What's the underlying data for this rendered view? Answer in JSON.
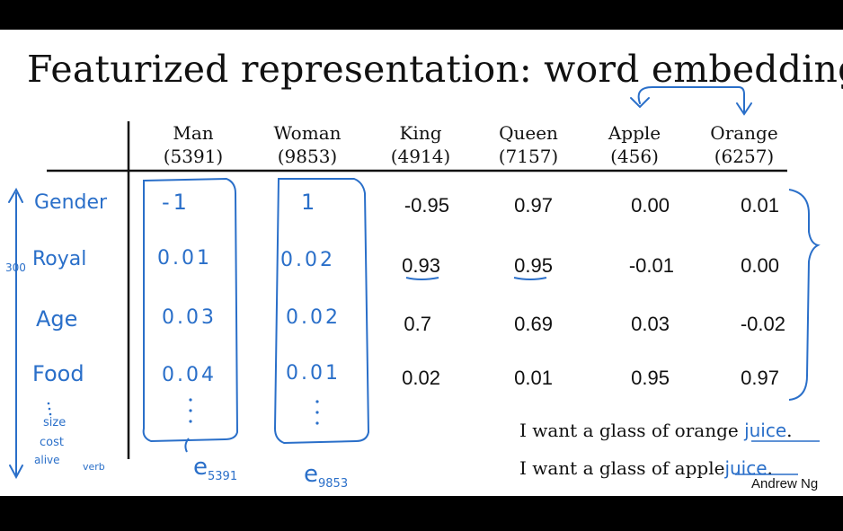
{
  "title": "Featurized representation: word embedding",
  "columns": [
    {
      "word": "Man",
      "index": "(5391)"
    },
    {
      "word": "Woman",
      "index": "(9853)"
    },
    {
      "word": "King",
      "index": "(4914)"
    },
    {
      "word": "Queen",
      "index": "(7157)"
    },
    {
      "word": "Apple",
      "index": "(456)"
    },
    {
      "word": "Orange",
      "index": "(6257)"
    }
  ],
  "features": [
    "Gender",
    "Royal",
    "Age",
    "Food"
  ],
  "extra_features": [
    "size",
    "cost",
    "alive",
    "verb"
  ],
  "dimension_note": "300",
  "handwritten_values": {
    "man": [
      "-1",
      "0.01",
      "0.03",
      "0.04"
    ],
    "woman": [
      "1",
      "0.02",
      "0.02",
      "0.01"
    ]
  },
  "typed_values": {
    "king": [
      "-0.95",
      "0.93",
      "0.7",
      "0.02"
    ],
    "queen": [
      "0.97",
      "0.95",
      "0.69",
      "0.01"
    ],
    "apple": [
      "0.00",
      "-0.01",
      "0.03",
      "0.95"
    ],
    "orange": [
      "0.01",
      "0.00",
      "-0.02",
      "0.97"
    ]
  },
  "embedding_labels": {
    "man": {
      "base": "e",
      "sub": "5391"
    },
    "woman": {
      "base": "e",
      "sub": "9853"
    }
  },
  "sentences": [
    {
      "text": "I want a glass of orange",
      "blank": "juice",
      "end": "."
    },
    {
      "text": "I want a glass of apple",
      "blank": "juice",
      "end": "."
    }
  ],
  "credit": "Andrew Ng",
  "colors": {
    "ink": "#2a6fc9",
    "text": "#111111",
    "background": "#ffffff",
    "frame": "#000000"
  }
}
